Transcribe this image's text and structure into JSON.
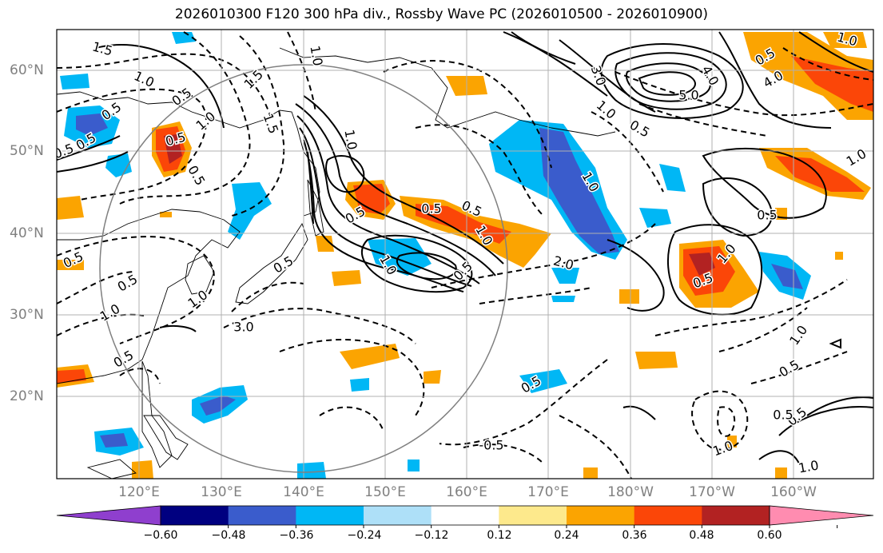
{
  "title": "2026010300 F120 300 hPa div., Rossby Wave PC (2026010500 - 2026010900)",
  "lat_labels": [
    "60°N",
    "50°N",
    "40°N",
    "30°N",
    "20°N"
  ],
  "lon_labels": [
    "120°E",
    "130°E",
    "140°E",
    "150°E",
    "160°E",
    "170°E",
    "180°W",
    "170°W",
    "160°W"
  ],
  "colorbar": {
    "labels": [
      "−0.60",
      "−0.48",
      "−0.36",
      "−0.24",
      "−0.12",
      "0.12",
      "0.24",
      "0.36",
      "0.48",
      "0.60"
    ],
    "colors": [
      "#8f3fce",
      "#000080",
      "#3a5ccc",
      "#00b7f5",
      "#aee0f8",
      "#ffffff",
      "#fde98c",
      "#fba401",
      "#fb4608",
      "#b22222",
      "#ff8cb0"
    ]
  },
  "contour_labels": [
    "1.5",
    "1.0",
    "0.5",
    "1.0",
    "1.5",
    "0.5",
    "0.5",
    "0.5",
    "1.0",
    "1.5",
    "0.5",
    "0.5",
    "0.5",
    "0.5",
    "1.0",
    "0.5",
    "1.0",
    "3.0",
    "0.5",
    "1.0",
    "1.0",
    "0.5",
    "0.5",
    "0.5",
    "2.0",
    "0.5",
    "1.0",
    "3.0",
    "4.0",
    "5.0",
    "0.5",
    "1.0",
    "4.0",
    "0.5",
    "1.0",
    "1.0",
    "0.5",
    "1.0",
    "1.0",
    "0.5",
    "1.0",
    "0.5",
    "0.5",
    "0.5",
    "-0.5",
    "1.0",
    "1.0",
    "0.5"
  ]
}
